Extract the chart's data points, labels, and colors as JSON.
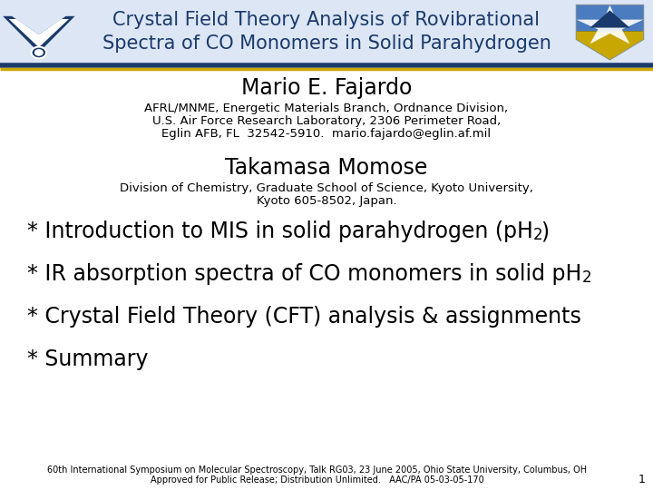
{
  "header_bg": "#dce6f4",
  "header_title": "Crystal Field Theory Analysis of Rovibrational\nSpectra of CO Monomers in Solid Parahydrogen",
  "header_title_color": "#1a3a6b",
  "header_title_fontsize": 15,
  "sep_color1": "#1a3a6b",
  "sep_color2": "#c8a800",
  "author1_name": "Mario E. Fajardo",
  "author1_affil_lines": [
    "AFRL/MNME, Energetic Materials Branch, Ordnance Division,",
    "U.S. Air Force Research Laboratory, 2306 Perimeter Road,",
    "Eglin AFB, FL  32542-5910.  mario.fajardo@eglin.af.mil"
  ],
  "author2_name": "Takamasa Momose",
  "author2_affil_lines": [
    "Division of Chemistry, Graduate School of Science, Kyoto University,",
    "Kyoto 605-8502, Japan."
  ],
  "bullet1_main": "* Introduction to MIS in solid parahydrogen (pH",
  "bullet1_sub": "2",
  "bullet1_end": ")",
  "bullet2_main": "* IR absorption spectra of CO monomers in solid pH",
  "bullet2_sub": "2",
  "bullet3": "* Crystal Field Theory (CFT) analysis & assignments",
  "bullet4": "* Summary",
  "footer_line1": "60th International Symposium on Molecular Spectroscopy, Talk RG03, 23 June 2005, Ohio State University, Columbus, OH",
  "footer_line2": "Approved for Public Release; Distribution Unlimited.   AAC/PA 05-03-05-170",
  "page_num": "1",
  "body_bg": "#ffffff",
  "text_color": "#000000",
  "name_fontsize": 17,
  "affil_fontsize": 9.5,
  "bullet_fontsize": 17,
  "footer_fontsize": 7
}
